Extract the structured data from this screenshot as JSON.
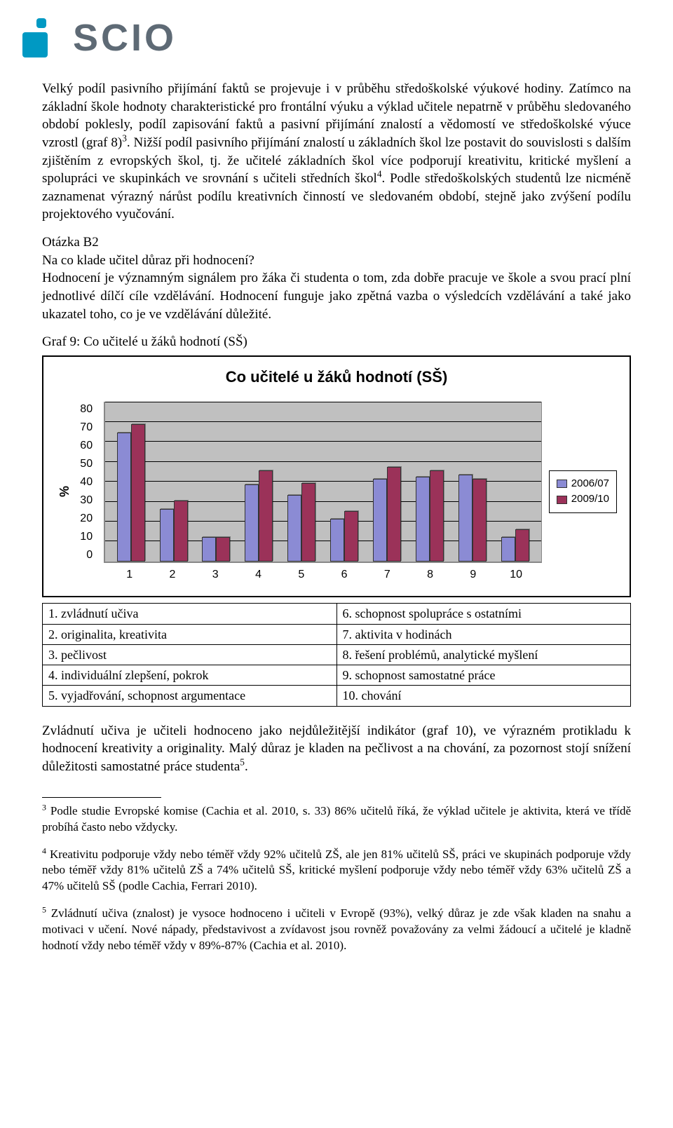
{
  "logo": {
    "word": "SCIO"
  },
  "para1": "Velký podíl pasivního přijímání faktů se projevuje i v průběhu středoškolské výukové hodiny.",
  "para2_a": "Zatímco na základní škole hodnoty charakteristické pro frontální výuku a výklad učitele nepatrně v průběhu sledovaného období poklesly, podíl zapisování faktů a pasivní přijímání znalostí a vědomostí ve středoškolské výuce vzrostl (graf 8)",
  "para2_b": ". Nižší podíl pasivního přijímání znalostí u základních škol lze postavit do souvislosti s dalším zjištěním z evropských škol, tj. že učitelé základních škol více podporují kreativitu, kritické myšlení a spolupráci ve skupinkách ve srovnání s učiteli středních škol",
  "para2_c": ". Podle středoškolských studentů lze nicméně zaznamenat výrazný nárůst podílu kreativních činností ve sledovaném období, stejně jako zvýšení podílu projektového vyučování.",
  "q_label": "Otázka B2",
  "q_text": "Na co klade učitel důraz při hodnocení?",
  "para3": "Hodnocení je významným signálem pro žáka či studenta o tom, zda dobře pracuje ve škole a svou prací plní jednotlivé dílčí cíle vzdělávání. Hodnocení funguje jako zpětná vazba o výsledcích vzdělávání a také jako ukazatel toho, co je ve vzdělávání důležité.",
  "chart_caption": "Graf 9: Co učitelé u žáků hodnotí (SŠ)",
  "chart": {
    "title": "Co učitelé u žáků hodnotí (SŠ)",
    "y_label": "%",
    "y_ticks": [
      "80",
      "70",
      "60",
      "50",
      "40",
      "30",
      "20",
      "10",
      "0"
    ],
    "y_max": 80,
    "x_ticks": [
      "1",
      "2",
      "3",
      "4",
      "5",
      "6",
      "7",
      "8",
      "9",
      "10"
    ],
    "series": [
      {
        "name": "2006/07",
        "color": "#8b8bd4",
        "values": [
          64,
          26,
          12,
          38,
          33,
          21,
          41,
          42,
          43,
          12
        ]
      },
      {
        "name": "2009/10",
        "color": "#9b3259",
        "values": [
          68,
          30,
          12,
          45,
          39,
          25,
          47,
          45,
          41,
          16
        ]
      }
    ],
    "plot_bg": "#c0c0c0"
  },
  "keys_left": [
    "1. zvládnutí učiva",
    "2. originalita, kreativita",
    "3. pečlivost",
    "4. individuální zlepšení, pokrok",
    "5. vyjadřování, schopnost argumentace"
  ],
  "keys_right": [
    "6. schopnost spolupráce s ostatními",
    "7. aktivita v hodinách",
    "8. řešení problémů, analytické myšlení",
    "9. schopnost samostatné práce",
    "10. chování"
  ],
  "para4_a": "Zvládnutí učiva je učiteli hodnoceno jako nejdůležitější indikátor (graf 10), ve výrazném protikladu k hodnocení kreativity a originality. Malý důraz je kladen na pečlivost a na chování, za pozornost stojí snížení důležitosti samostatné práce studenta",
  "para4_b": ".",
  "fn3_n": "3",
  "fn3": " Podle studie Evropské komise (Cachia et al. 2010, s. 33) 86% učitelů říká, že výklad učitele je aktivita, která ve třídě probíhá často nebo vždycky.",
  "fn4_n": "4",
  "fn4": " Kreativitu podporuje vždy nebo téměř vždy 92% učitelů ZŠ, ale jen 81% učitelů SŠ, práci ve skupinách podporuje vždy nebo téměř vždy 81% učitelů ZŠ a 74% učitelů SŠ, kritické myšlení podporuje vždy nebo téměř vždy 63% učitelů ZŠ a 47% učitelů SŠ (podle Cachia, Ferrari 2010).",
  "fn5_n": "5",
  "fn5": " Zvládnutí učiva (znalost) je vysoce hodnoceno i učiteli v Evropě (93%), velký důraz je zde však kladen na snahu a motivaci v učení. Nové nápady, představivost a zvídavost jsou rovněž považovány za velmi žádoucí a učitelé je kladně hodnotí vždy nebo téměř vždy v 89%-87% (Cachia et al. 2010)."
}
